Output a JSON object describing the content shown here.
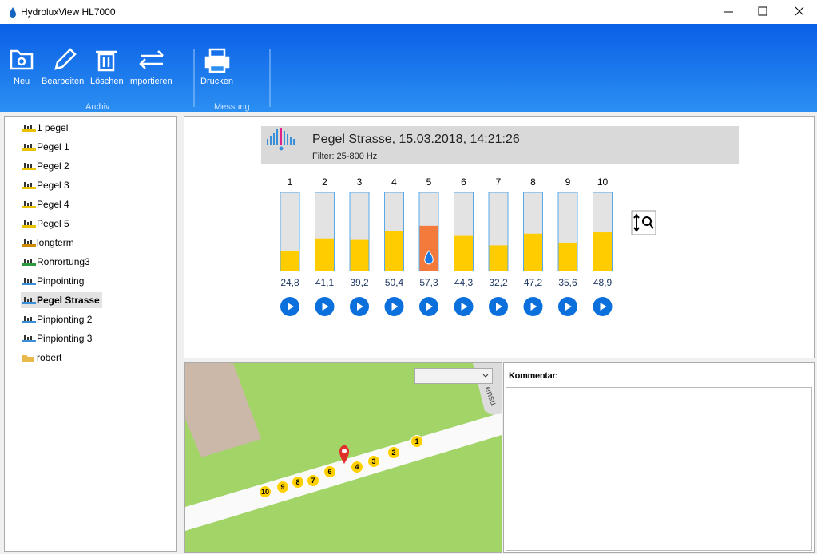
{
  "window": {
    "title": "HydroluxView HL7000"
  },
  "ribbon": {
    "buttons": [
      "Neu",
      "Bearbeiten",
      "Löschen",
      "Importieren",
      "Drucken"
    ],
    "groups": [
      "Archiv",
      "Messung"
    ]
  },
  "tree": {
    "items": [
      "1 pegel",
      "Pegel 1",
      "Pegel 2",
      "Pegel 3",
      "Pegel 4",
      "Pegel 5",
      "longterm",
      "Rohrortung3",
      "Pinpointing",
      "Pegel Strasse",
      "Pinpionting 2",
      "Pinpionting 3",
      "robert"
    ],
    "selected": "Pegel Strasse"
  },
  "measurement": {
    "title": "Pegel Strasse, 15.03.2018, 14:21:26",
    "filter": "Filter: 25-800 Hz",
    "gauge_range": [
      0,
      100
    ],
    "channels": [
      "1",
      "2",
      "3",
      "4",
      "5",
      "6",
      "7",
      "8",
      "9",
      "10"
    ],
    "values": [
      24.8,
      41.1,
      39.2,
      50.4,
      57.3,
      44.3,
      32.2,
      47.2,
      35.6,
      48.9
    ],
    "value_labels": [
      "24,8",
      "41,1",
      "39,2",
      "50,4",
      "57,3",
      "44,3",
      "32,2",
      "47,2",
      "35,6",
      "48,9"
    ],
    "highlighted": "5"
  },
  "map": {
    "markers": [
      "1",
      "2",
      "3",
      "4",
      "6",
      "7",
      "8",
      "9",
      "10"
    ],
    "street_label": "ensu"
  },
  "comment": {
    "label": "Kommentar:"
  }
}
